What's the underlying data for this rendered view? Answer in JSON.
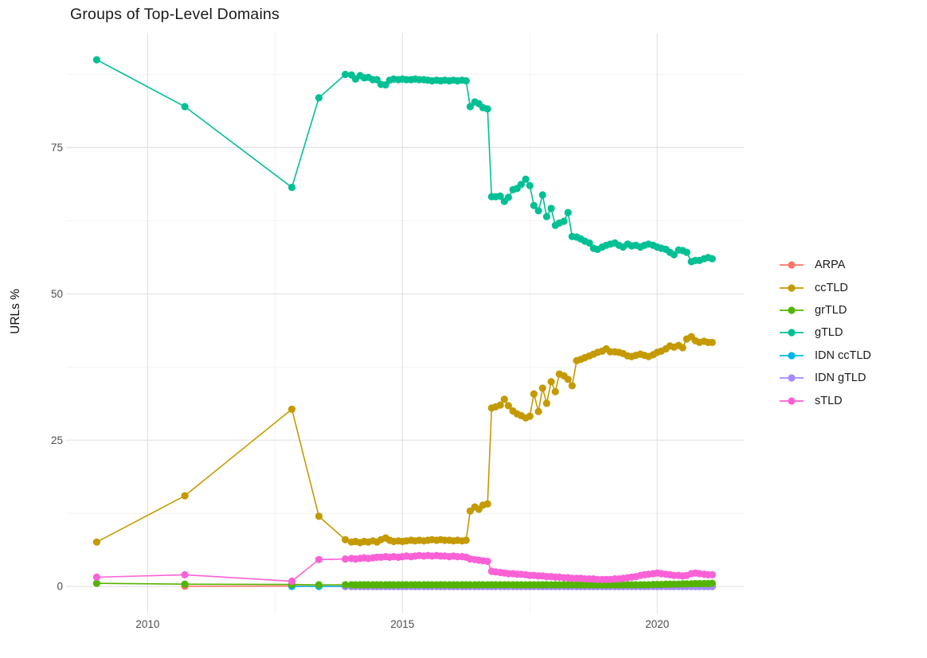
{
  "title": "Groups of Top-Level Domains",
  "legend": {
    "position": "right",
    "items": [
      {
        "label": "ARPA",
        "color": "#F8766D"
      },
      {
        "label": "ccTLD",
        "color": "#C49A00"
      },
      {
        "label": "grTLD",
        "color": "#53B400"
      },
      {
        "label": "gTLD",
        "color": "#00C094"
      },
      {
        "label": "IDN ccTLD",
        "color": "#00B6EB"
      },
      {
        "label": "IDN gTLD",
        "color": "#A58AFF"
      },
      {
        "label": "sTLD",
        "color": "#FB61D7"
      }
    ]
  },
  "chart_data": {
    "type": "line",
    "title": "Groups of Top-Level Domains",
    "xlabel": "",
    "ylabel": "URLs %",
    "xlim": [
      2008.4,
      2021.7
    ],
    "ylim": [
      -4.6,
      94.5
    ],
    "x_major": [
      2010,
      2015,
      2020
    ],
    "x_minor": [
      2012.5,
      2017.5
    ],
    "y_major": [
      0,
      25,
      50,
      75
    ],
    "y_minor": [
      12.5,
      37.5,
      62.5,
      87.5
    ],
    "grid": true,
    "legend_position": "right",
    "dense_x": [
      2013.88,
      2014.0,
      2014.08,
      2014.17,
      2014.25,
      2014.33,
      2014.42,
      2014.5,
      2014.58,
      2014.67,
      2014.75,
      2014.83,
      2014.92,
      2015.0,
      2015.08,
      2015.17,
      2015.25,
      2015.33,
      2015.42,
      2015.5,
      2015.58,
      2015.67,
      2015.75,
      2015.83,
      2015.92,
      2016.0,
      2016.08,
      2016.17,
      2016.25,
      2016.33,
      2016.42,
      2016.5,
      2016.58,
      2016.67,
      2016.75,
      2016.83,
      2016.92,
      2017.0,
      2017.08,
      2017.17,
      2017.25,
      2017.33,
      2017.42,
      2017.5,
      2017.58,
      2017.67,
      2017.75,
      2017.83,
      2017.92,
      2018.0,
      2018.08,
      2018.17,
      2018.25,
      2018.33,
      2018.42,
      2018.5,
      2018.58,
      2018.67,
      2018.75,
      2018.83,
      2018.92,
      2019.0,
      2019.08,
      2019.17,
      2019.25,
      2019.33,
      2019.42,
      2019.5,
      2019.58,
      2019.67,
      2019.75,
      2019.83,
      2019.92,
      2020.0,
      2020.08,
      2020.17,
      2020.25,
      2020.33,
      2020.42,
      2020.5,
      2020.58,
      2020.67,
      2020.75,
      2020.83,
      2020.92,
      2021.0,
      2021.08
    ],
    "series": [
      {
        "name": "ARPA",
        "color": "#F8766D",
        "pre": [
          [
            2010.73,
            0.05
          ],
          [
            2012.83,
            0.08
          ],
          [
            2013.36,
            0.05
          ]
        ],
        "dense_const": 0.05
      },
      {
        "name": "IDN ccTLD",
        "color": "#00B6EB",
        "pre": [
          [
            2012.83,
            0.02
          ],
          [
            2013.36,
            0.02
          ]
        ],
        "dense_const": 0.02
      },
      {
        "name": "IDN gTLD",
        "color": "#A58AFF",
        "pre": [],
        "dense_const": 0.0
      },
      {
        "name": "grTLD",
        "color": "#53B400",
        "pre": [
          [
            2009.0,
            0.55
          ],
          [
            2010.73,
            0.4
          ],
          [
            2012.83,
            0.35
          ],
          [
            2013.36,
            0.3
          ]
        ],
        "dense": [
          0.3,
          0.3,
          0.3,
          0.3,
          0.3,
          0.3,
          0.3,
          0.3,
          0.3,
          0.3,
          0.3,
          0.3,
          0.3,
          0.3,
          0.3,
          0.3,
          0.3,
          0.3,
          0.3,
          0.3,
          0.3,
          0.3,
          0.3,
          0.3,
          0.3,
          0.3,
          0.3,
          0.3,
          0.3,
          0.3,
          0.3,
          0.3,
          0.3,
          0.3,
          0.3,
          0.3,
          0.3,
          0.3,
          0.3,
          0.3,
          0.3,
          0.3,
          0.3,
          0.3,
          0.3,
          0.3,
          0.3,
          0.3,
          0.3,
          0.3,
          0.3,
          0.3,
          0.3,
          0.3,
          0.3,
          0.3,
          0.3,
          0.3,
          0.3,
          0.3,
          0.3,
          0.3,
          0.3,
          0.3,
          0.3,
          0.3,
          0.3,
          0.3,
          0.3,
          0.3,
          0.3,
          0.3,
          0.35,
          0.35,
          0.35,
          0.4,
          0.4,
          0.4,
          0.4,
          0.45,
          0.45,
          0.45,
          0.5,
          0.5,
          0.5,
          0.5,
          0.55
        ]
      },
      {
        "name": "gTLD",
        "color": "#00C094",
        "pre": [
          [
            2009.0,
            90.0
          ],
          [
            2010.73,
            82.0
          ],
          [
            2012.83,
            68.2
          ],
          [
            2013.36,
            83.5
          ]
        ],
        "dense": [
          87.5,
          87.4,
          86.7,
          87.3,
          86.9,
          87.0,
          86.6,
          86.6,
          85.8,
          85.7,
          86.5,
          86.7,
          86.6,
          86.7,
          86.6,
          86.6,
          86.7,
          86.6,
          86.6,
          86.5,
          86.4,
          86.5,
          86.4,
          86.5,
          86.4,
          86.5,
          86.4,
          86.5,
          86.4,
          82.0,
          82.8,
          82.5,
          81.8,
          81.6,
          66.6,
          66.6,
          66.7,
          65.8,
          66.5,
          67.8,
          68.0,
          68.7,
          69.6,
          68.5,
          65.1,
          64.2,
          66.9,
          63.2,
          64.6,
          61.7,
          62.1,
          62.4,
          63.9,
          59.8,
          59.7,
          59.4,
          59.0,
          58.7,
          57.8,
          57.6,
          58.0,
          58.3,
          58.5,
          58.7,
          58.3,
          58.0,
          58.5,
          58.2,
          58.3,
          58.0,
          58.3,
          58.5,
          58.3,
          58.0,
          57.8,
          57.6,
          57.1,
          56.7,
          57.5,
          57.4,
          57.1,
          55.5,
          55.7,
          55.7,
          56.0,
          56.2,
          56.0
        ]
      },
      {
        "name": "ccTLD",
        "color": "#C49A00",
        "pre": [
          [
            2009.0,
            7.6
          ],
          [
            2010.73,
            15.5
          ],
          [
            2012.83,
            30.3
          ],
          [
            2013.36,
            12.0
          ]
        ],
        "dense": [
          8.0,
          7.6,
          7.7,
          7.5,
          7.7,
          7.6,
          7.8,
          7.6,
          8.0,
          8.3,
          7.9,
          7.7,
          7.8,
          7.7,
          7.8,
          7.9,
          7.8,
          7.9,
          7.8,
          7.9,
          8.0,
          7.9,
          8.0,
          7.9,
          7.9,
          7.8,
          7.9,
          7.8,
          7.9,
          12.9,
          13.6,
          13.2,
          13.9,
          14.1,
          30.5,
          30.7,
          31.0,
          32.0,
          30.9,
          30.0,
          29.5,
          29.2,
          28.8,
          29.1,
          32.9,
          29.9,
          33.9,
          31.3,
          35.0,
          33.3,
          36.3,
          36.0,
          35.4,
          34.3,
          38.6,
          38.8,
          39.1,
          39.4,
          39.7,
          40.0,
          40.2,
          40.6,
          40.1,
          40.1,
          40.0,
          39.8,
          39.4,
          39.3,
          39.5,
          39.7,
          39.5,
          39.3,
          39.6,
          40.0,
          40.2,
          40.6,
          41.1,
          40.9,
          41.2,
          40.8,
          42.3,
          42.7,
          42.0,
          41.7,
          41.9,
          41.7,
          41.7
        ]
      },
      {
        "name": "sTLD",
        "color": "#FB61D7",
        "pre": [
          [
            2009.0,
            1.6
          ],
          [
            2010.73,
            2.0
          ],
          [
            2012.83,
            0.9
          ],
          [
            2013.36,
            4.6
          ]
        ],
        "dense": [
          4.7,
          4.8,
          4.7,
          4.8,
          4.9,
          4.8,
          4.9,
          5.0,
          5.0,
          5.1,
          5.0,
          5.1,
          5.0,
          5.1,
          5.2,
          5.1,
          5.2,
          5.3,
          5.2,
          5.3,
          5.2,
          5.3,
          5.2,
          5.2,
          5.1,
          5.2,
          5.1,
          5.1,
          5.0,
          4.7,
          4.6,
          4.5,
          4.4,
          4.3,
          2.6,
          2.5,
          2.4,
          2.3,
          2.2,
          2.2,
          2.1,
          2.1,
          2.0,
          1.9,
          1.9,
          1.8,
          1.8,
          1.7,
          1.7,
          1.6,
          1.6,
          1.5,
          1.5,
          1.4,
          1.4,
          1.4,
          1.3,
          1.3,
          1.3,
          1.2,
          1.2,
          1.2,
          1.2,
          1.3,
          1.3,
          1.4,
          1.5,
          1.6,
          1.7,
          1.9,
          2.0,
          2.1,
          2.2,
          2.3,
          2.2,
          2.1,
          2.0,
          1.9,
          1.9,
          1.8,
          1.9,
          2.2,
          2.3,
          2.2,
          2.1,
          2.0,
          2.0
        ]
      }
    ]
  },
  "style": {
    "grid_major_color": "#E4E4E4",
    "grid_minor_color": "#F1F1F1",
    "tick_label_color": "#4d4d4d",
    "background": "#ffffff"
  }
}
